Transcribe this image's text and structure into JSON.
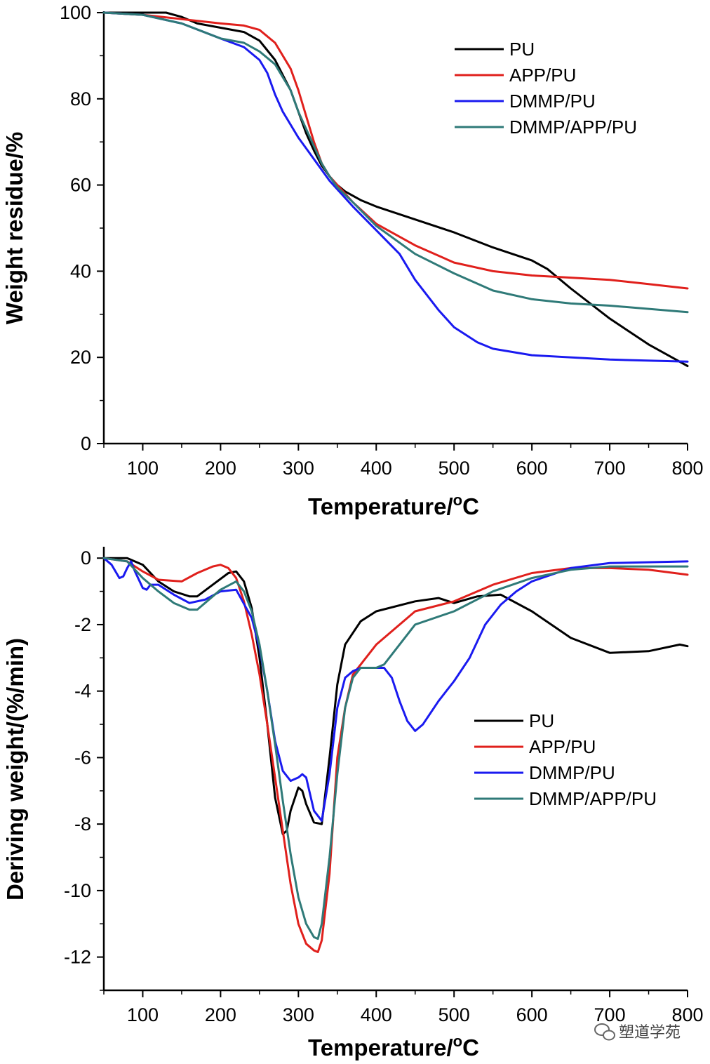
{
  "chart_data": [
    {
      "type": "line",
      "title": "",
      "xlabel": "Temperature/°C",
      "xlabel_main": "Temperature/",
      "xlabel_sup": "o",
      "xlabel_unit": "C",
      "ylabel": "Weight residue/%",
      "xlim": [
        50,
        800
      ],
      "ylim": [
        0,
        100
      ],
      "x_ticks": [
        "100",
        "200",
        "300",
        "400",
        "500",
        "600",
        "700",
        "800"
      ],
      "y_ticks": [
        "0",
        "20",
        "40",
        "60",
        "80",
        "100"
      ],
      "legend_position": "top-right",
      "series": [
        {
          "name": "PU",
          "color": "#000000",
          "x": [
            50,
            100,
            130,
            150,
            170,
            200,
            230,
            250,
            270,
            290,
            300,
            310,
            320,
            330,
            340,
            350,
            360,
            380,
            400,
            450,
            500,
            550,
            600,
            620,
            650,
            700,
            750,
            800
          ],
          "y": [
            100,
            100,
            100,
            99,
            97.5,
            96.5,
            95.5,
            93.5,
            89,
            82,
            77,
            72,
            68,
            64.5,
            62,
            60,
            58.5,
            56.5,
            55,
            52,
            49,
            45.5,
            42.5,
            40.5,
            36,
            29,
            23,
            18
          ]
        },
        {
          "name": "APP/PU",
          "color": "#e0201c",
          "x": [
            50,
            100,
            150,
            200,
            230,
            250,
            270,
            290,
            300,
            310,
            320,
            330,
            340,
            350,
            370,
            400,
            450,
            500,
            550,
            600,
            650,
            700,
            750,
            800
          ],
          "y": [
            100,
            99.5,
            98.5,
            97.5,
            97,
            96,
            93,
            87,
            82,
            76,
            70,
            65,
            62,
            60,
            56,
            51,
            46,
            42,
            40,
            39,
            38.5,
            38,
            37,
            36
          ]
        },
        {
          "name": "DMMP/PU",
          "color": "#1a1af0",
          "x": [
            50,
            100,
            150,
            200,
            230,
            250,
            260,
            270,
            280,
            290,
            300,
            310,
            320,
            330,
            340,
            350,
            370,
            400,
            430,
            450,
            480,
            500,
            530,
            550,
            600,
            700,
            800
          ],
          "y": [
            100,
            99.5,
            97.5,
            94,
            92,
            89,
            86,
            81,
            77,
            74,
            71,
            68.5,
            66,
            63.5,
            61,
            59,
            55,
            49.5,
            44,
            38,
            31,
            27,
            23.5,
            22,
            20.5,
            19.5,
            19
          ]
        },
        {
          "name": "DMMP/APP/PU",
          "color": "#2f7a78",
          "x": [
            50,
            100,
            150,
            200,
            230,
            250,
            270,
            290,
            300,
            310,
            320,
            330,
            340,
            350,
            370,
            400,
            450,
            500,
            550,
            600,
            650,
            700,
            800
          ],
          "y": [
            100,
            99.5,
            97.5,
            94,
            93,
            91,
            88,
            82,
            77,
            73,
            69,
            65,
            62,
            59.5,
            56,
            50.5,
            44,
            39.5,
            35.5,
            33.5,
            32.5,
            32,
            30.5
          ]
        }
      ]
    },
    {
      "type": "line",
      "title": "",
      "xlabel": "Temperature/°C",
      "xlabel_main": "Temperature/",
      "xlabel_sup": "o",
      "xlabel_unit": "C",
      "ylabel": "Deriving weight/(%/min)",
      "xlim": [
        50,
        800
      ],
      "ylim": [
        -13,
        0.3
      ],
      "x_ticks": [
        "100",
        "200",
        "300",
        "400",
        "500",
        "600",
        "700",
        "800"
      ],
      "y_ticks": [
        "0",
        "-2",
        "-4",
        "-6",
        "-8",
        "-10",
        "-12"
      ],
      "legend_position": "center-right",
      "series": [
        {
          "name": "PU",
          "color": "#000000",
          "x": [
            50,
            80,
            100,
            120,
            140,
            160,
            170,
            190,
            210,
            220,
            230,
            240,
            250,
            260,
            270,
            280,
            285,
            290,
            300,
            305,
            310,
            320,
            330,
            340,
            350,
            360,
            380,
            400,
            450,
            480,
            500,
            530,
            560,
            600,
            650,
            700,
            750,
            790,
            800
          ],
          "y": [
            0,
            0,
            -0.2,
            -0.7,
            -1.0,
            -1.15,
            -1.15,
            -0.8,
            -0.45,
            -0.4,
            -0.7,
            -1.5,
            -3.0,
            -5.0,
            -7.2,
            -8.3,
            -8.2,
            -7.6,
            -6.9,
            -7.0,
            -7.4,
            -7.95,
            -8.0,
            -6.0,
            -3.8,
            -2.6,
            -1.9,
            -1.6,
            -1.3,
            -1.2,
            -1.35,
            -1.15,
            -1.1,
            -1.6,
            -2.4,
            -2.85,
            -2.8,
            -2.6,
            -2.65
          ]
        },
        {
          "name": "APP/PU",
          "color": "#e0201c",
          "x": [
            50,
            80,
            100,
            120,
            150,
            170,
            190,
            200,
            210,
            220,
            230,
            240,
            250,
            260,
            270,
            280,
            290,
            300,
            310,
            320,
            325,
            330,
            340,
            350,
            360,
            370,
            380,
            400,
            450,
            500,
            550,
            600,
            650,
            700,
            750,
            800
          ],
          "y": [
            0,
            -0.1,
            -0.4,
            -0.65,
            -0.7,
            -0.45,
            -0.25,
            -0.2,
            -0.3,
            -0.6,
            -1.3,
            -2.3,
            -3.5,
            -5.0,
            -6.6,
            -8.2,
            -9.8,
            -11.0,
            -11.6,
            -11.8,
            -11.85,
            -11.5,
            -9.5,
            -6.0,
            -4.5,
            -3.5,
            -3.2,
            -2.6,
            -1.6,
            -1.3,
            -0.8,
            -0.45,
            -0.3,
            -0.3,
            -0.35,
            -0.5
          ]
        },
        {
          "name": "DMMP/PU",
          "color": "#1a1af0",
          "x": [
            50,
            60,
            70,
            75,
            80,
            85,
            90,
            100,
            105,
            110,
            120,
            140,
            160,
            180,
            200,
            220,
            240,
            250,
            260,
            270,
            280,
            290,
            300,
            305,
            310,
            320,
            330,
            340,
            350,
            360,
            370,
            380,
            400,
            410,
            420,
            430,
            440,
            450,
            460,
            480,
            500,
            520,
            540,
            560,
            580,
            600,
            650,
            700,
            800
          ],
          "y": [
            0,
            -0.2,
            -0.6,
            -0.55,
            -0.3,
            -0.1,
            -0.4,
            -0.9,
            -0.95,
            -0.8,
            -0.8,
            -1.1,
            -1.35,
            -1.25,
            -1.0,
            -0.95,
            -1.8,
            -2.7,
            -4.0,
            -5.5,
            -6.4,
            -6.7,
            -6.6,
            -6.5,
            -6.6,
            -7.6,
            -7.9,
            -6.5,
            -4.5,
            -3.6,
            -3.4,
            -3.3,
            -3.3,
            -3.3,
            -3.6,
            -4.3,
            -4.9,
            -5.2,
            -5.0,
            -4.3,
            -3.7,
            -3.0,
            -2.0,
            -1.4,
            -1.0,
            -0.7,
            -0.3,
            -0.15,
            -0.1
          ]
        },
        {
          "name": "DMMP/APP/PU",
          "color": "#2f7a78",
          "x": [
            50,
            80,
            100,
            120,
            140,
            160,
            170,
            180,
            200,
            220,
            230,
            240,
            250,
            260,
            270,
            280,
            290,
            300,
            310,
            320,
            325,
            330,
            340,
            350,
            360,
            370,
            380,
            400,
            410,
            420,
            450,
            500,
            550,
            600,
            650,
            700,
            800
          ],
          "y": [
            0,
            -0.1,
            -0.6,
            -1.0,
            -1.35,
            -1.55,
            -1.55,
            -1.35,
            -0.95,
            -0.7,
            -1.0,
            -1.6,
            -2.6,
            -4.0,
            -5.6,
            -7.3,
            -8.9,
            -10.2,
            -11.0,
            -11.4,
            -11.45,
            -11.0,
            -9.0,
            -6.5,
            -4.5,
            -3.6,
            -3.3,
            -3.3,
            -3.2,
            -2.9,
            -2.0,
            -1.6,
            -1.0,
            -0.6,
            -0.35,
            -0.25,
            -0.25
          ]
        }
      ]
    }
  ],
  "watermark": "塑道学苑"
}
